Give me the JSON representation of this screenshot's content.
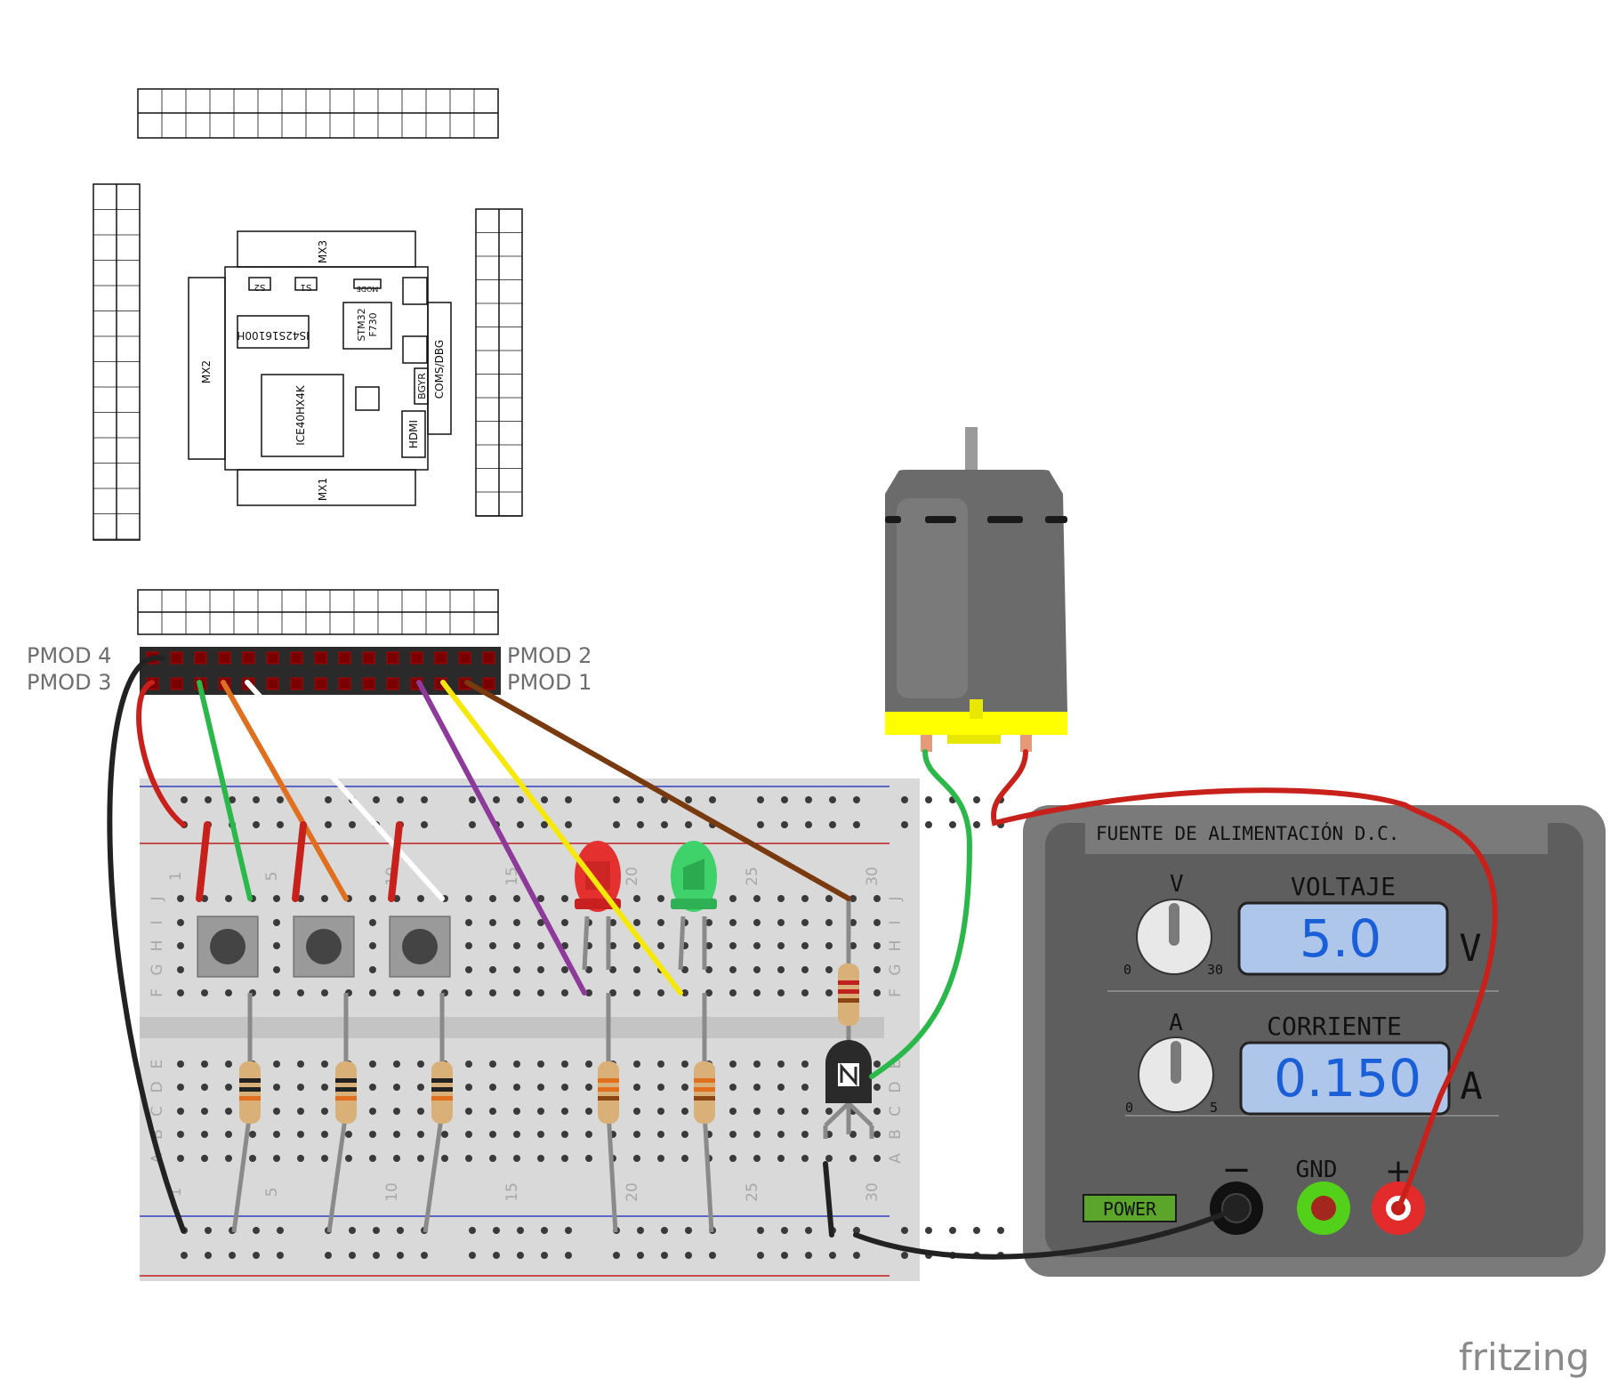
{
  "board": {
    "chips": [
      "MX3",
      "MX2",
      "MX1",
      "COMS/DBG",
      "IS42S16100H",
      "STM32\nF730",
      "ICE40HX4K",
      "HDMI",
      "BGYR",
      "S2",
      "S1",
      "MODE"
    ],
    "header_labels_left": [
      "PMOD 4",
      "PMOD 3"
    ],
    "header_labels_right": [
      "PMOD 2",
      "PMOD 1"
    ]
  },
  "breadboard": {
    "column_numbers": [
      "1",
      "5",
      "10",
      "15",
      "20",
      "25",
      "30"
    ],
    "row_letters_top": [
      "J",
      "I",
      "H",
      "G",
      "F"
    ],
    "row_letters_bottom": [
      "E",
      "D",
      "C",
      "B",
      "A"
    ]
  },
  "power_supply": {
    "title": "FUENTE DE ALIMENTACIÓN D.C.",
    "voltage_knob_label": "V",
    "voltage_knob_min": "0",
    "voltage_knob_max": "30",
    "voltage_title": "VOLTAJE",
    "voltage_value": "5.0",
    "voltage_unit": "V",
    "current_knob_label": "A",
    "current_knob_min": "0",
    "current_knob_max": "5",
    "current_title": "CORRIENTE",
    "current_value": "0.150",
    "current_unit": "A",
    "power_label": "POWER",
    "minus_label": "−",
    "gnd_label": "GND",
    "plus_label": "+"
  },
  "watermark": "fritzing",
  "colors": {
    "breadboard": "#d9d9d9",
    "supply_body": "#7a7a7a",
    "supply_panel": "#5e5e5e",
    "display": "#aec6ea",
    "display_text": "#1a5fd8",
    "motor_body": "#6b6b6b",
    "motor_base": "#ffff00",
    "wire_red": "#c8201a",
    "wire_green": "#2bb84a",
    "wire_black": "#222222"
  }
}
